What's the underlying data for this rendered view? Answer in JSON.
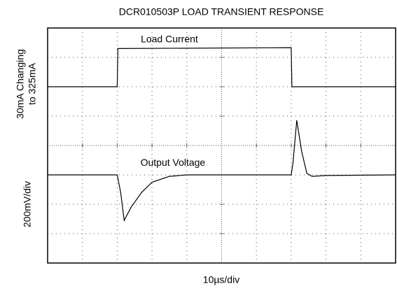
{
  "chart_data": {
    "type": "line",
    "title": "DCR010503P LOAD TRANSIENT RESPONSE",
    "xlabel": "10µs/div",
    "ylabel_top": [
      "30mA Changing",
      "to 325mA"
    ],
    "ylabel_bottom": "200mV/div",
    "xlim": [
      0,
      10
    ],
    "ylim": [
      0,
      8
    ],
    "xticks": [
      0,
      1,
      2,
      3,
      4,
      5,
      6,
      7,
      8,
      9,
      10
    ],
    "yticks": [
      0,
      1,
      2,
      3,
      4,
      5,
      6,
      7,
      8
    ],
    "grid": true,
    "series": [
      {
        "name": "Load Current",
        "color": "#000000",
        "x": [
          0,
          2.0,
          2.02,
          7.0,
          7.02,
          10
        ],
        "values": [
          6,
          6,
          7.3,
          7.33,
          6,
          6
        ]
      },
      {
        "name": "Output Voltage",
        "color": "#000000",
        "x": [
          0,
          2.0,
          2.1,
          2.2,
          2.4,
          2.7,
          3.0,
          3.5,
          4,
          7.0,
          7.05,
          7.16,
          7.3,
          7.45,
          7.6,
          8,
          10
        ],
        "values": [
          3,
          3,
          2.4,
          1.45,
          1.9,
          2.4,
          2.75,
          2.95,
          3,
          3,
          3.4,
          4.86,
          3.8,
          3.05,
          2.95,
          2.98,
          3
        ]
      }
    ]
  }
}
